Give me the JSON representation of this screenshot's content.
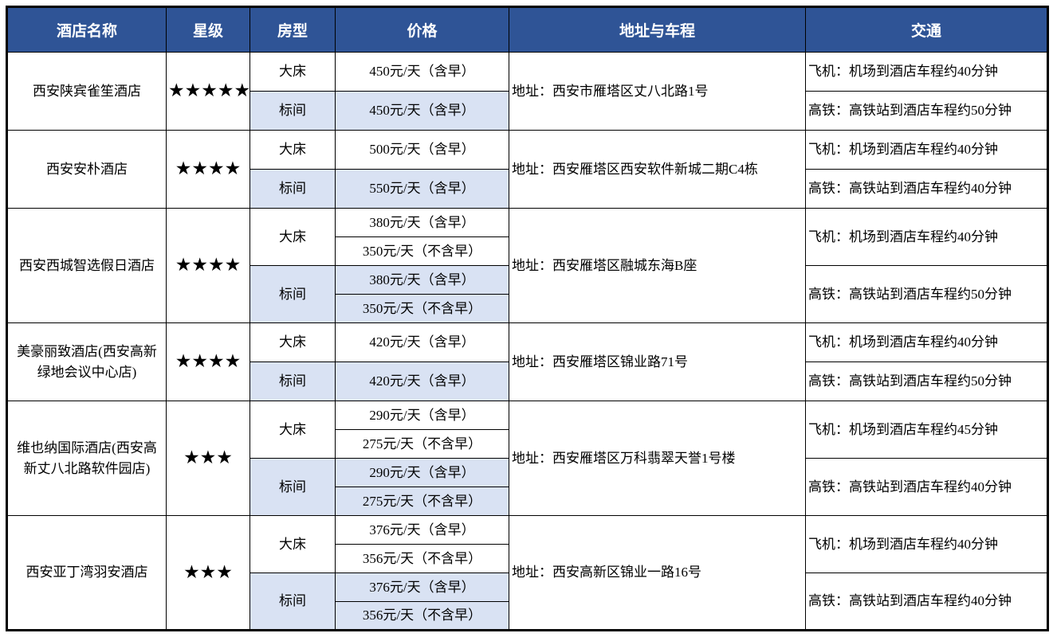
{
  "table": {
    "headers": [
      "酒店名称",
      "星级",
      "房型",
      "价格",
      "地址与车程",
      "交通"
    ],
    "colors": {
      "header_bg": "#2F5496",
      "header_text": "#FFFFFF",
      "highlight_bg": "#D9E2F3",
      "border": "#000000",
      "star": "#000000"
    },
    "rows": [
      {
        "name": "西安陕宾雀笙酒店",
        "stars": "★★★★★",
        "room_types": [
          {
            "label": "大床",
            "prices": [
              "450元/天（含早）"
            ],
            "highlight": false
          },
          {
            "label": "标间",
            "prices": [
              "450元/天（含早）"
            ],
            "highlight": true
          }
        ],
        "address": "地址：西安市雁塔区丈八北路1号",
        "transport": [
          "飞机：机场到酒店车程约40分钟",
          "高铁：高铁站到酒店车程约50分钟"
        ]
      },
      {
        "name": "西安安朴酒店",
        "stars": "★★★★",
        "room_types": [
          {
            "label": "大床",
            "prices": [
              "500元/天（含早）"
            ],
            "highlight": false
          },
          {
            "label": "标间",
            "prices": [
              "550元/天（含早）"
            ],
            "highlight": true
          }
        ],
        "address": "地址：西安雁塔区西安软件新城二期C4栋",
        "transport": [
          "飞机：机场到酒店车程约40分钟",
          "高铁：高铁站到酒店车程约40分钟"
        ]
      },
      {
        "name": "西安西城智选假日酒店",
        "stars": "★★★★",
        "room_types": [
          {
            "label": "大床",
            "prices": [
              "380元/天（含早）",
              "350元/天（不含早）"
            ],
            "highlight": false
          },
          {
            "label": "标间",
            "prices": [
              "380元/天（含早）",
              "350元/天（不含早）"
            ],
            "highlight": true
          }
        ],
        "address": "地址：西安雁塔区融城东海B座",
        "transport": [
          "飞机：机场到酒店车程约40分钟",
          "高铁：高铁站到酒店车程约50分钟"
        ]
      },
      {
        "name": "美豪丽致酒店(西安高新绿地会议中心店)",
        "stars": "★★★★",
        "room_types": [
          {
            "label": "大床",
            "prices": [
              "420元/天（含早）"
            ],
            "highlight": false
          },
          {
            "label": "标间",
            "prices": [
              "420元/天（含早）"
            ],
            "highlight": true
          }
        ],
        "address": "地址：西安雁塔区锦业路71号",
        "transport": [
          "飞机：机场到酒店车程约40分钟",
          "高铁：高铁站到酒店车程约50分钟"
        ]
      },
      {
        "name": "维也纳国际酒店(西安高新丈八北路软件园店)",
        "stars": "★★★",
        "room_types": [
          {
            "label": "大床",
            "prices": [
              "290元/天（含早）",
              "275元/天（不含早）"
            ],
            "highlight": false
          },
          {
            "label": "标间",
            "prices": [
              "290元/天（含早）",
              "275元/天（不含早）"
            ],
            "highlight": true
          }
        ],
        "address": "地址：西安雁塔区万科翡翠天誉1号楼",
        "transport": [
          "飞机：机场到酒店车程约45分钟",
          "高铁：高铁站到酒店车程约40分钟"
        ]
      },
      {
        "name": "西安亚丁湾羽安酒店",
        "stars": "★★★",
        "room_types": [
          {
            "label": "大床",
            "prices": [
              "376元/天（含早）",
              "356元/天（不含早）"
            ],
            "highlight": false
          },
          {
            "label": "标间",
            "prices": [
              "376元/天（含早）",
              "356元/天（不含早）"
            ],
            "highlight": true
          }
        ],
        "address": "地址：西安高新区锦业一路16号",
        "transport": [
          "飞机：机场到酒店车程约40分钟",
          "高铁：高铁站到酒店车程约40分钟"
        ]
      }
    ]
  }
}
